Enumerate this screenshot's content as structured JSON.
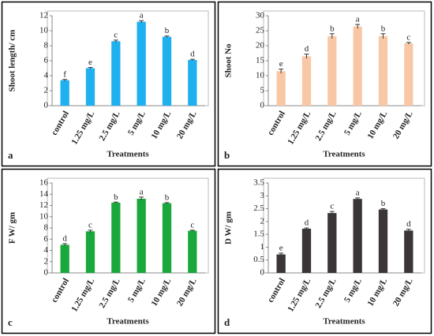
{
  "chart_data": [
    {
      "type": "bar",
      "panel": "a",
      "ylabel": "Shoot length/ cm",
      "xlabel": "Treatments",
      "categories": [
        "control",
        "1.25 mg/L",
        "2.5 mg/L",
        "5 mg/L",
        "10 mg/L",
        "20 mg/L"
      ],
      "values": [
        3.4,
        5.0,
        8.6,
        11.2,
        9.2,
        6.1
      ],
      "errors": [
        0.1,
        0.1,
        0.15,
        0.15,
        0.1,
        0.1
      ],
      "annotations": [
        "f",
        "e",
        "c",
        "a",
        "b",
        "d"
      ],
      "color": "#1fb0ef",
      "ylim": [
        0,
        12
      ],
      "yticks": [
        0,
        2,
        4,
        6,
        8,
        10,
        12
      ]
    },
    {
      "type": "bar",
      "panel": "b",
      "ylabel": "Shoot No",
      "xlabel": "Treatments",
      "categories": [
        "control",
        "1.25 mg/L",
        "2.5 mg/L",
        "5 mg/L",
        "10 mg/L",
        "20 mg/L"
      ],
      "values": [
        11.5,
        16.5,
        23.2,
        26.4,
        23.2,
        20.8
      ],
      "errors": [
        0.7,
        0.7,
        0.8,
        0.7,
        0.8,
        0.3
      ],
      "annotations": [
        "e",
        "d",
        "b",
        "a",
        "b",
        "c"
      ],
      "color": "#f8c8a6",
      "ylim": [
        0,
        30
      ],
      "yticks": [
        0,
        5,
        10,
        15,
        20,
        25,
        30
      ]
    },
    {
      "type": "bar",
      "panel": "c",
      "ylabel": "F W/ gm",
      "xlabel": "Treatments",
      "categories": [
        "control",
        "1.25 mg/L",
        "2.5 mg/L",
        "5 mg/L",
        "10 mg/L",
        "20 mg/L"
      ],
      "values": [
        5.0,
        7.4,
        12.5,
        13.2,
        12.4,
        7.5
      ],
      "errors": [
        0.2,
        0.2,
        0.1,
        0.3,
        0.1,
        0.1
      ],
      "annotations": [
        "d",
        "c",
        "b",
        "a",
        "b",
        "c"
      ],
      "color": "#1aa83c",
      "ylim": [
        0,
        16
      ],
      "yticks": [
        0,
        2,
        4,
        6,
        8,
        10,
        12,
        14,
        16
      ]
    },
    {
      "type": "bar",
      "panel": "d",
      "ylabel": "D W/ gm",
      "xlabel": "Treatments",
      "categories": [
        "control",
        "1.25 mg/L",
        "2.5 mg/L",
        "5 mg/L",
        "10 mg/L",
        "20 mg/L"
      ],
      "values": [
        0.72,
        1.72,
        2.33,
        2.88,
        2.47,
        1.65
      ],
      "errors": [
        0.05,
        0.03,
        0.06,
        0.04,
        0.03,
        0.05
      ],
      "annotations": [
        "e",
        "d",
        "c",
        "a",
        "b",
        "d"
      ],
      "color": "#3a3536",
      "ylim": [
        0,
        3.5
      ],
      "yticks": [
        0,
        0.5,
        1,
        1.5,
        2,
        2.5,
        3,
        3.5
      ]
    }
  ]
}
